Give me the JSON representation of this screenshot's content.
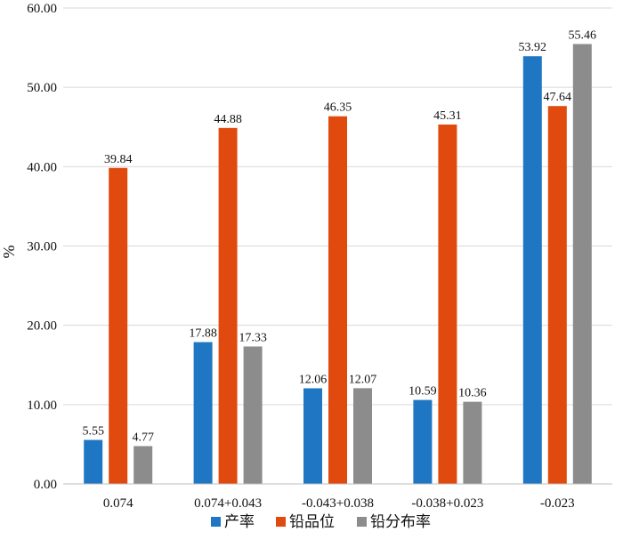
{
  "chart_data": {
    "type": "bar",
    "title": "",
    "xlabel": "",
    "ylabel": "%",
    "ylim": [
      0,
      60
    ],
    "yticks": [
      "0.00",
      "10.00",
      "20.00",
      "30.00",
      "40.00",
      "50.00",
      "60.00"
    ],
    "categories": [
      "0.074",
      "0.074+0.043",
      "-0.043+0.038",
      "-0.038+0.023",
      "-0.023"
    ],
    "series": [
      {
        "name": "产率",
        "color": "#1f77c4",
        "values": [
          5.55,
          17.88,
          12.06,
          10.59,
          53.92
        ],
        "labels": [
          "5.55",
          "17.88",
          "12.06",
          "10.59",
          "53.92"
        ]
      },
      {
        "name": "铅品位",
        "color": "#e04a0f",
        "values": [
          39.84,
          44.88,
          46.35,
          45.31,
          47.64
        ],
        "labels": [
          "39.84",
          "44.88",
          "46.35",
          "45.31",
          "47.64"
        ]
      },
      {
        "name": "铅分布率",
        "color": "#8c8c8c",
        "values": [
          4.77,
          17.33,
          12.07,
          10.36,
          55.46
        ],
        "labels": [
          "4.77",
          "17.33",
          "12.07",
          "10.36",
          "55.46"
        ]
      }
    ],
    "grid": true,
    "legend_position": "bottom"
  }
}
